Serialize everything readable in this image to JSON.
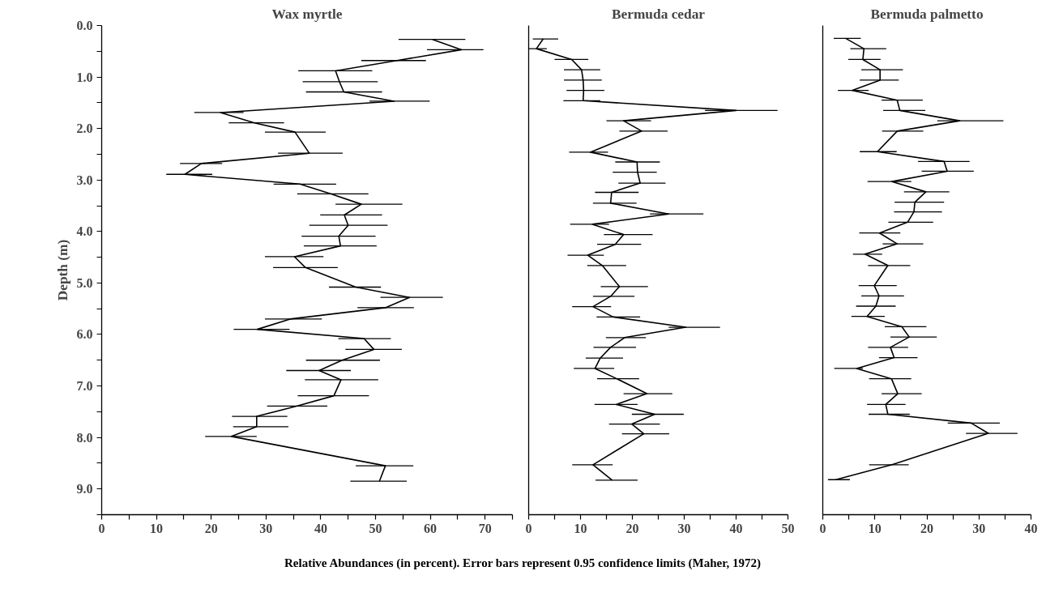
{
  "chart_data": [
    {
      "type": "line",
      "orientation": "horizontal",
      "title": "Wax myrtle",
      "ylabel": "Depth (m)",
      "annotations": [
        "Relative Abundances (in percent). Error bars represent 0.95 confidence limits (Maher, 1972)"
      ],
      "x": [
        0.27,
        0.47,
        0.68,
        0.88,
        1.09,
        1.29,
        1.47,
        1.69,
        1.89,
        2.07,
        2.48,
        2.68,
        2.89,
        3.08,
        3.27,
        3.47,
        3.68,
        3.88,
        4.09,
        4.28,
        4.49,
        4.7,
        5.08,
        5.28,
        5.48,
        5.7,
        5.9,
        6.08,
        6.29,
        6.5,
        6.7,
        6.88,
        7.19,
        7.39,
        7.59,
        7.79,
        7.98,
        8.55,
        8.85
      ],
      "series": [
        {
          "color": "#000000",
          "values": [
            60.4,
            65.7,
            53.9,
            42.7,
            43.4,
            44.2,
            53.4,
            21.7,
            27.9,
            35.3,
            37.9,
            18.2,
            15.2,
            36.2,
            41.9,
            47.4,
            44.3,
            45.0,
            43.3,
            43.6,
            35.2,
            37.2,
            46.4,
            56.2,
            51.8,
            34.4,
            28.4,
            47.9,
            49.7,
            43.9,
            39.7,
            43.7,
            42.4,
            35.7,
            28.3,
            28.3,
            23.7,
            51.8,
            50.7
          ],
          "errors": [
            [
              54.2,
              66.4
            ],
            [
              59.4,
              69.7
            ],
            [
              47.4,
              59.2
            ],
            [
              35.9,
              49.4
            ],
            [
              36.7,
              50.4
            ],
            [
              37.3,
              51.2
            ],
            [
              48.9,
              59.9
            ],
            [
              16.9,
              25.9
            ],
            [
              23.2,
              33.3
            ],
            [
              29.8,
              40.9
            ],
            [
              32.2,
              44.0
            ],
            [
              14.3,
              22.0
            ],
            [
              11.8,
              20.2
            ],
            [
              31.4,
              42.8
            ],
            [
              35.7,
              48.7
            ],
            [
              42.7,
              54.9
            ],
            [
              39.9,
              51.2
            ],
            [
              37.9,
              52.2
            ],
            [
              36.5,
              50.0
            ],
            [
              36.9,
              50.2
            ],
            [
              29.8,
              40.5
            ],
            [
              31.3,
              43.1
            ],
            [
              41.5,
              51.0
            ],
            [
              50.9,
              62.3
            ],
            [
              46.7,
              57.0
            ],
            [
              29.8,
              40.2
            ],
            [
              24.1,
              34.3
            ],
            [
              43.2,
              52.8
            ],
            [
              44.5,
              54.8
            ],
            [
              37.3,
              50.8
            ],
            [
              33.7,
              45.5
            ],
            [
              37.1,
              50.5
            ],
            [
              35.8,
              48.8
            ],
            [
              30.2,
              41.2
            ],
            [
              23.8,
              33.9
            ],
            [
              24.0,
              34.1
            ],
            [
              18.9,
              28.3
            ],
            [
              46.4,
              56.9
            ],
            [
              45.4,
              55.7
            ]
          ]
        }
      ],
      "xlim": [
        0,
        75
      ],
      "xticks": [
        0,
        {
          "value": 5,
          "label": null
        },
        10,
        {
          "value": 15,
          "label": null
        },
        20,
        {
          "value": 25,
          "label": null
        },
        30,
        {
          "value": 35,
          "label": null
        },
        40,
        {
          "value": 45,
          "label": null
        },
        50,
        {
          "value": 55,
          "label": null
        },
        60,
        {
          "value": 65,
          "label": null
        },
        70,
        {
          "value": 75,
          "label": null
        }
      ],
      "ylim": [
        9.5,
        0
      ],
      "yticks": [
        {
          "value": 0,
          "label": "0.0"
        },
        {
          "value": 0.5,
          "label": null
        },
        {
          "value": 1,
          "label": "1.0"
        },
        {
          "value": 1.5,
          "label": null
        },
        {
          "value": 2,
          "label": "2.0"
        },
        {
          "value": 2.5,
          "label": null
        },
        {
          "value": 3,
          "label": "3.0"
        },
        {
          "value": 3.5,
          "label": null
        },
        {
          "value": 4,
          "label": "4.0"
        },
        {
          "value": 4.5,
          "label": null
        },
        {
          "value": 5,
          "label": "5.0"
        },
        {
          "value": 5.5,
          "label": null
        },
        {
          "value": 6,
          "label": "6.0"
        },
        {
          "value": 6.5,
          "label": null
        },
        {
          "value": 7,
          "label": "7.0"
        },
        {
          "value": 7.5,
          "label": null
        },
        {
          "value": 8,
          "label": "8.0"
        },
        {
          "value": 8.5,
          "label": null
        },
        {
          "value": 9,
          "label": "9.0"
        },
        {
          "value": 9.5,
          "label": null
        }
      ]
    },
    {
      "type": "line",
      "orientation": "horizontal",
      "title": "Bermuda cedar",
      "tick_labels": "x",
      "x": [
        0.26,
        0.45,
        0.66,
        0.86,
        1.06,
        1.26,
        1.46,
        1.65,
        1.85,
        2.05,
        2.46,
        2.65,
        2.85,
        3.06,
        3.24,
        3.45,
        3.66,
        3.86,
        4.06,
        4.25,
        4.46,
        4.66,
        5.07,
        5.26,
        5.46,
        5.66,
        5.86,
        6.06,
        6.25,
        6.46,
        6.66,
        6.86,
        7.15,
        7.36,
        7.55,
        7.74,
        7.93,
        8.53,
        8.83
      ],
      "series": [
        {
          "color": "#000000",
          "values": [
            2.8,
            1.5,
            8.3,
            10.2,
            10.5,
            10.6,
            10.5,
            40.0,
            18.3,
            21.8,
            11.9,
            20.9,
            21.0,
            21.5,
            16.0,
            15.8,
            27.0,
            12.3,
            18.3,
            16.7,
            11.4,
            14.2,
            17.5,
            15.8,
            12.4,
            16.3,
            30.3,
            18.5,
            15.8,
            13.8,
            12.8,
            17.0,
            22.8,
            16.9,
            24.3,
            19.9,
            22.2,
            12.4,
            16.1
          ],
          "errors": [
            [
              0.8,
              5.7
            ],
            [
              0,
              3.5
            ],
            [
              5.0,
              11.5
            ],
            [
              6.8,
              13.8
            ],
            [
              6.8,
              14.1
            ],
            [
              7.3,
              14.6
            ],
            [
              6.7,
              13.8
            ],
            [
              34.0,
              48.0
            ],
            [
              15.0,
              23.6
            ],
            [
              17.5,
              26.8
            ],
            [
              7.8,
              15.3
            ],
            [
              16.7,
              25.3
            ],
            [
              16.2,
              24.7
            ],
            [
              17.3,
              26.4
            ],
            [
              12.8,
              21.2
            ],
            [
              12.4,
              20.8
            ],
            [
              23.4,
              33.7
            ],
            [
              8.0,
              15.5
            ],
            [
              14.5,
              23.9
            ],
            [
              13.2,
              21.7
            ],
            [
              7.5,
              14.5
            ],
            [
              11.3,
              18.8
            ],
            [
              13.9,
              23.0
            ],
            [
              12.4,
              20.4
            ],
            [
              8.4,
              15.9
            ],
            [
              13.1,
              21.5
            ],
            [
              27.0,
              36.9
            ],
            [
              14.9,
              22.6
            ],
            [
              12.5,
              20.7
            ],
            [
              11.0,
              18.2
            ],
            [
              8.7,
              16.5
            ],
            [
              13.2,
              21.3
            ],
            [
              18.3,
              27.7
            ],
            [
              12.7,
              21.0
            ],
            [
              19.9,
              29.9
            ],
            [
              15.5,
              25.3
            ],
            [
              18.0,
              27.1
            ],
            [
              8.4,
              16.2
            ],
            [
              12.9,
              21.0
            ]
          ]
        }
      ],
      "xlim": [
        0,
        50
      ],
      "xticks": [
        0,
        {
          "value": 5,
          "label": null
        },
        10,
        {
          "value": 15,
          "label": null
        },
        20,
        {
          "value": 25,
          "label": null
        },
        30,
        {
          "value": 35,
          "label": null
        },
        40,
        {
          "value": 45,
          "label": null
        },
        50
      ],
      "ylim": [
        9.5,
        0
      ]
    },
    {
      "type": "line",
      "orientation": "horizontal",
      "title": "Bermuda palmetto",
      "tick_labels": "x",
      "x": [
        0.25,
        0.45,
        0.66,
        0.86,
        1.06,
        1.26,
        1.45,
        1.65,
        1.85,
        2.05,
        2.45,
        2.64,
        2.83,
        3.03,
        3.23,
        3.43,
        3.62,
        3.82,
        4.03,
        4.24,
        4.44,
        4.66,
        5.05,
        5.25,
        5.45,
        5.65,
        5.85,
        6.05,
        6.25,
        6.45,
        6.66,
        6.86,
        7.15,
        7.36,
        7.55,
        7.72,
        7.92,
        8.53,
        8.82
      ],
      "series": [
        {
          "color": "#000000",
          "values": [
            4.4,
            7.9,
            7.7,
            11.0,
            11.0,
            5.7,
            14.3,
            14.8,
            26.3,
            14.3,
            10.5,
            23.3,
            23.9,
            13.3,
            19.8,
            17.7,
            17.5,
            16.3,
            10.9,
            14.3,
            8.1,
            12.5,
            9.9,
            10.8,
            10.2,
            8.5,
            15.2,
            16.6,
            13.0,
            13.7,
            6.5,
            13.2,
            14.4,
            12.1,
            12.5,
            28.5,
            31.8,
            13.3,
            2.5
          ],
          "errors": [
            [
              2.1,
              7.3
            ],
            [
              5.3,
              12.2
            ],
            [
              4.9,
              11.1
            ],
            [
              7.4,
              15.4
            ],
            [
              7.1,
              14.6
            ],
            [
              2.9,
              8.8
            ],
            [
              11.3,
              19.2
            ],
            [
              11.6,
              19.7
            ],
            [
              22.0,
              34.7
            ],
            [
              11.4,
              19.3
            ],
            [
              7.1,
              14.2
            ],
            [
              18.3,
              28.2
            ],
            [
              19.0,
              29.0
            ],
            [
              8.6,
              17.0
            ],
            [
              15.6,
              24.3
            ],
            [
              13.8,
              23.3
            ],
            [
              13.7,
              22.9
            ],
            [
              12.6,
              21.2
            ],
            [
              7.0,
              14.9
            ],
            [
              11.5,
              19.3
            ],
            [
              5.8,
              11.4
            ],
            [
              8.7,
              16.8
            ],
            [
              6.9,
              14.2
            ],
            [
              7.4,
              15.6
            ],
            [
              6.4,
              14.0
            ],
            [
              5.5,
              11.9
            ],
            [
              11.9,
              19.9
            ],
            [
              13.0,
              21.9
            ],
            [
              8.7,
              16.4
            ],
            [
              10.8,
              18.2
            ],
            [
              2.2,
              7.7
            ],
            [
              8.9,
              17.0
            ],
            [
              11.3,
              19.0
            ],
            [
              8.5,
              15.9
            ],
            [
              8.8,
              16.7
            ],
            [
              24.0,
              34.0
            ],
            [
              27.5,
              37.4
            ],
            [
              8.9,
              16.5
            ],
            [
              1.0,
              5.2
            ]
          ]
        }
      ],
      "xlim": [
        0,
        40
      ],
      "xticks": [
        0,
        {
          "value": 5,
          "label": null
        },
        10,
        {
          "value": 15,
          "label": null
        },
        20,
        {
          "value": 25,
          "label": null
        },
        30,
        {
          "value": 35,
          "label": null
        },
        40
      ],
      "ylim": [
        9.5,
        0
      ]
    }
  ]
}
